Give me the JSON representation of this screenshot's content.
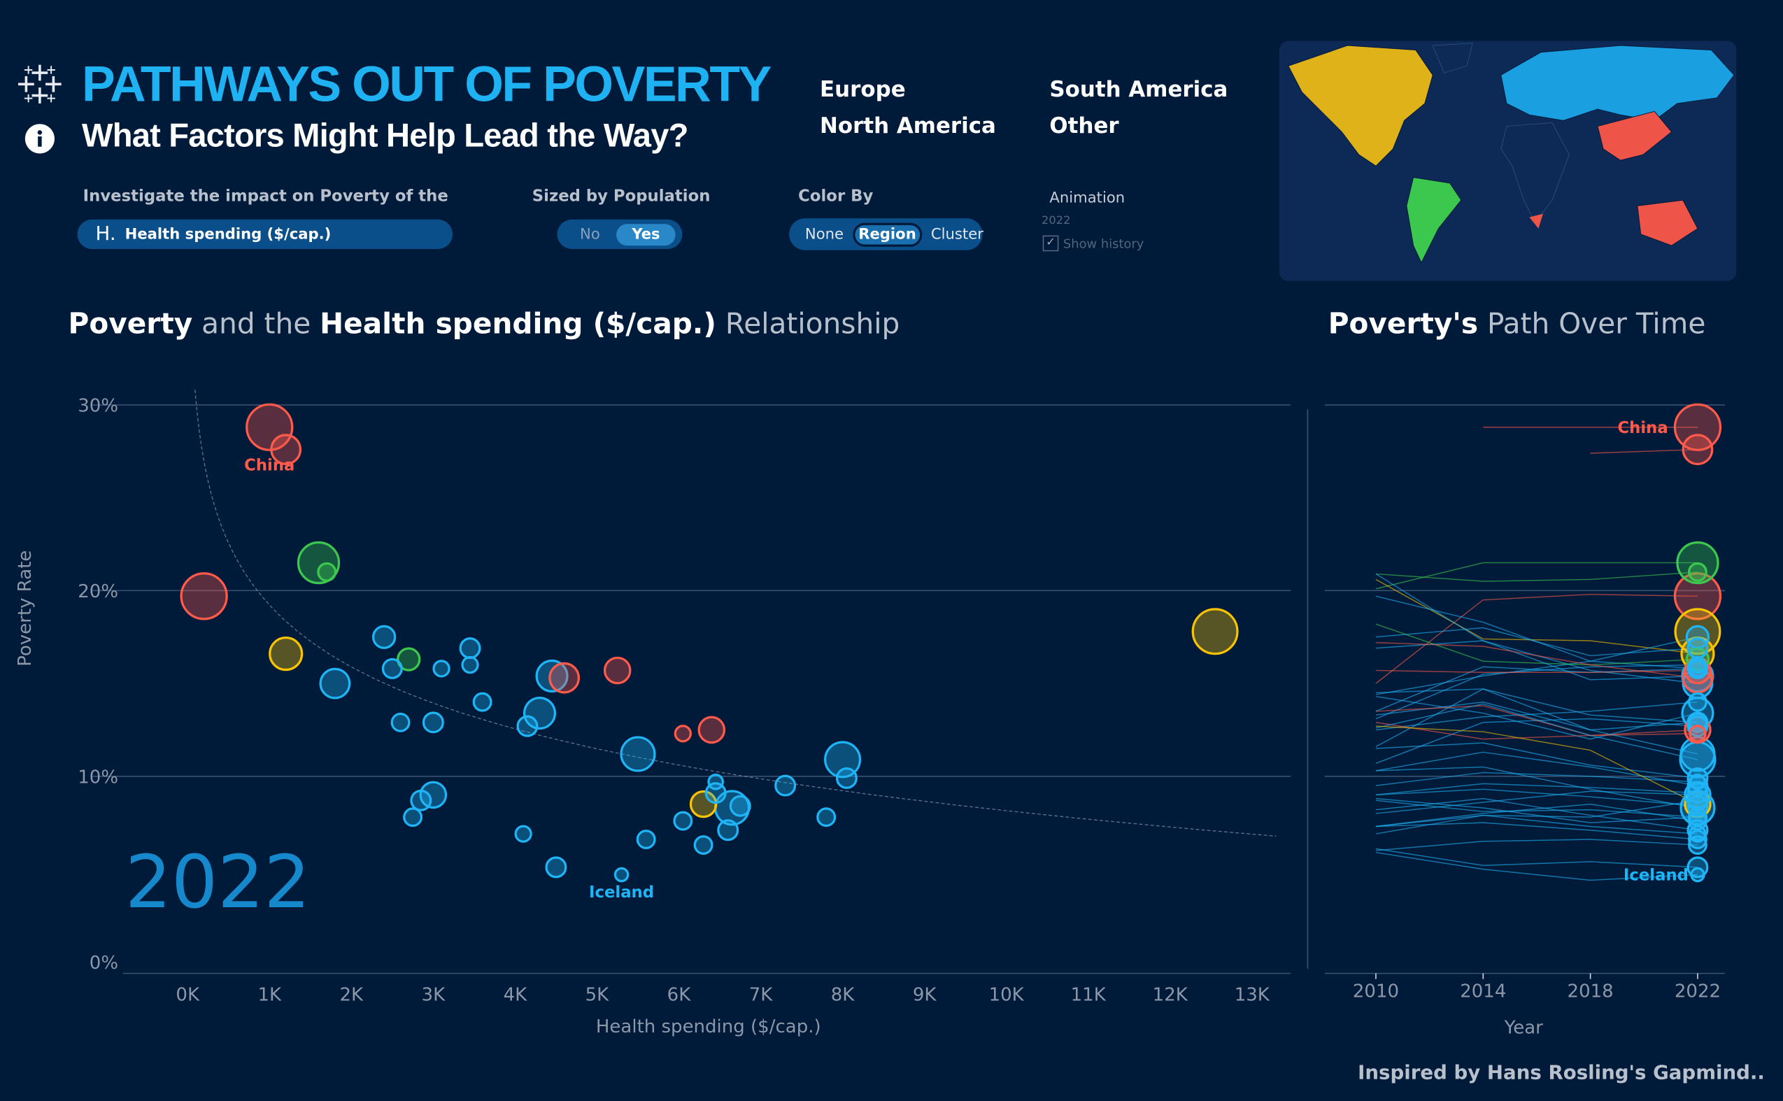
{
  "header": {
    "title": "PATHWAYS OUT OF POVERTY",
    "subtitle": "What Factors Might Help Lead the Way?",
    "logo_icon": "tableau-logo-icon",
    "info_icon": "info-icon"
  },
  "legend": [
    {
      "label": "Europe",
      "color": "#1fb4f5"
    },
    {
      "label": "South America",
      "color": "#3cc84e"
    },
    {
      "label": "North America",
      "color": "#f8c300"
    },
    {
      "label": "Other",
      "color": "#ff5a4a"
    }
  ],
  "controls": {
    "factor_label": "Investigate the impact on Poverty of the",
    "factor_prefix": "H.",
    "factor_value": "Health spending ($/cap.)",
    "size_label": "Sized by Population",
    "size_options": [
      "No",
      "Yes"
    ],
    "size_selected": "Yes",
    "color_label": "Color By",
    "color_options": [
      "None",
      "Region",
      "Cluster"
    ],
    "color_selected": "Region",
    "animation_label": "Animation",
    "animation_year": "2022",
    "show_history_label": "Show history",
    "show_history_checked": true
  },
  "scatter_title": {
    "b1": "Poverty",
    "t1": " and the ",
    "b2": "Health spending ($/cap.)",
    "t2": " Relationship"
  },
  "path_title": {
    "b1": "Poverty's",
    "t1": " Path Over Time"
  },
  "footer": "Inspired by Hans Rosling's Gapmind..",
  "chart_data": [
    {
      "type": "scatter",
      "xlabel": "Health spending ($/cap.)",
      "ylabel": "Poverty Rate",
      "xlim": [
        -0.5,
        13.5
      ],
      "ylim": [
        0,
        30
      ],
      "x_ticks": [
        "0K",
        "1K",
        "2K",
        "3K",
        "4K",
        "5K",
        "6K",
        "7K",
        "8K",
        "9K",
        "10K",
        "11K",
        "12K",
        "13K"
      ],
      "y_ticks": [
        "0%",
        "10%",
        "20%",
        "30%"
      ],
      "year_label": "2022",
      "trendline": "logarithmic",
      "grid": true,
      "annotations": [
        "China",
        "Iceland"
      ]
    },
    {
      "type": "line",
      "xlabel": "Year",
      "x_ticks": [
        "2010",
        "2014",
        "2018",
        "2022"
      ],
      "history_years": [
        2010,
        2014,
        2018,
        2022
      ],
      "ylim": [
        0,
        30
      ],
      "annotations": [
        "China",
        "Iceland"
      ]
    }
  ],
  "countries": [
    {
      "name": "China",
      "region": "Other",
      "health_k": 1.0,
      "poverty": 28.8,
      "pop_rel": 1.0,
      "history": [
        null,
        28.8,
        28.8,
        28.8
      ]
    },
    {
      "name": "",
      "region": "Other",
      "health_k": 1.2,
      "poverty": 27.6,
      "pop_rel": 0.3,
      "history": [
        null,
        null,
        27.4,
        27.6
      ]
    },
    {
      "name": "",
      "region": "Other",
      "health_k": 0.2,
      "poverty": 19.7,
      "pop_rel": 1.0,
      "history": [
        15,
        19.5,
        19.8,
        19.7
      ]
    },
    {
      "name": "",
      "region": "South America",
      "health_k": 1.6,
      "poverty": 21.5,
      "pop_rel": 0.75,
      "history": [
        20.1,
        21.5,
        21.5,
        21.5
      ]
    },
    {
      "name": "",
      "region": "South America",
      "health_k": 1.7,
      "poverty": 21.0,
      "pop_rel": 0.05,
      "history": [
        20.9,
        20.5,
        20.6,
        21.0
      ]
    },
    {
      "name": "",
      "region": "North America",
      "health_k": 1.2,
      "poverty": 16.6,
      "pop_rel": 0.4,
      "history": [
        20.6,
        17.4,
        17.3,
        16.6
      ]
    },
    {
      "name": "",
      "region": "Europe",
      "health_k": 1.8,
      "poverty": 15.0,
      "pop_rel": 0.3,
      "history": [
        20.9,
        17.3,
        15.7,
        15.0
      ]
    },
    {
      "name": "",
      "region": "Europe",
      "health_k": 2.4,
      "poverty": 17.5,
      "pop_rel": 0.12,
      "history": [
        19.7,
        18.3,
        16.2,
        17.5
      ]
    },
    {
      "name": "",
      "region": "Europe",
      "health_k": 2.5,
      "poverty": 15.8,
      "pop_rel": 0.07,
      "history": [
        14.4,
        15.4,
        16.2,
        15.8
      ]
    },
    {
      "name": "",
      "region": "South America",
      "health_k": 2.7,
      "poverty": 16.3,
      "pop_rel": 0.12,
      "history": [
        18.2,
        16.2,
        16.0,
        16.3
      ]
    },
    {
      "name": "",
      "region": "Europe",
      "health_k": 3.1,
      "poverty": 15.8,
      "pop_rel": 0.03,
      "history": [
        13.5,
        15.9,
        15.6,
        15.8
      ]
    },
    {
      "name": "",
      "region": "Europe",
      "health_k": 3.45,
      "poverty": 16.9,
      "pop_rel": 0.08,
      "history": [
        17.5,
        18.0,
        16.5,
        16.9
      ]
    },
    {
      "name": "",
      "region": "Europe",
      "health_k": 3.45,
      "poverty": 16.0,
      "pop_rel": 0.03,
      "history": [
        13.1,
        15.5,
        15.9,
        16.0
      ]
    },
    {
      "name": "",
      "region": "Europe",
      "health_k": 3.6,
      "poverty": 14.0,
      "pop_rel": 0.05,
      "history": [
        12.5,
        13.2,
        13.5,
        14.0
      ]
    },
    {
      "name": "",
      "region": "Europe",
      "health_k": 2.6,
      "poverty": 12.9,
      "pop_rel": 0.05,
      "history": [
        11.6,
        14.7,
        13.3,
        12.9
      ]
    },
    {
      "name": "",
      "region": "Europe",
      "health_k": 3.0,
      "poverty": 12.9,
      "pop_rel": 0.08,
      "history": [
        13.3,
        14.0,
        12.5,
        12.9
      ]
    },
    {
      "name": "",
      "region": "Europe",
      "health_k": 4.3,
      "poverty": 13.4,
      "pop_rel": 0.35,
      "history": [
        14.3,
        13.4,
        12.0,
        13.4
      ]
    },
    {
      "name": "",
      "region": "Europe",
      "health_k": 4.15,
      "poverty": 12.7,
      "pop_rel": 0.08,
      "history": [
        10.7,
        12.9,
        13.1,
        12.7
      ]
    },
    {
      "name": "",
      "region": "Europe",
      "health_k": 4.45,
      "poverty": 15.4,
      "pop_rel": 0.35,
      "history": [
        16.9,
        17.3,
        15.2,
        15.4
      ]
    },
    {
      "name": "",
      "region": "Other",
      "health_k": 4.6,
      "poverty": 15.3,
      "pop_rel": 0.3,
      "history": [
        17.2,
        17.0,
        16.0,
        15.3
      ]
    },
    {
      "name": "",
      "region": "Other",
      "health_k": 5.25,
      "poverty": 15.7,
      "pop_rel": 0.2,
      "history": [
        15.7,
        15.6,
        15.6,
        15.7
      ]
    },
    {
      "name": "",
      "region": "Other",
      "health_k": 6.05,
      "poverty": 12.3,
      "pop_rel": 0.03,
      "history": [
        12.9,
        12.0,
        12.2,
        12.3
      ]
    },
    {
      "name": "",
      "region": "Other",
      "health_k": 6.4,
      "poverty": 12.5,
      "pop_rel": 0.2,
      "history": [
        13.5,
        13.8,
        12.2,
        12.5
      ]
    },
    {
      "name": "",
      "region": "Europe",
      "health_k": 5.5,
      "poverty": 11.2,
      "pop_rel": 0.45,
      "history": [
        14.5,
        14.7,
        12.5,
        11.2
      ]
    },
    {
      "name": "",
      "region": "Europe",
      "health_k": 8.0,
      "poverty": 10.9,
      "pop_rel": 0.5,
      "history": [
        12.6,
        13.9,
        12.2,
        10.9
      ]
    },
    {
      "name": "",
      "region": "Europe",
      "health_k": 8.05,
      "poverty": 9.9,
      "pop_rel": 0.08,
      "history": [
        11.5,
        11.8,
        10.6,
        9.9
      ]
    },
    {
      "name": "",
      "region": "Europe",
      "health_k": 7.3,
      "poverty": 9.5,
      "pop_rel": 0.08,
      "history": [
        10.3,
        11.3,
        10.5,
        9.5
      ]
    },
    {
      "name": "",
      "region": "Europe",
      "health_k": 6.45,
      "poverty": 9.7,
      "pop_rel": 0.02,
      "history": [
        9.5,
        10.2,
        10.0,
        9.7
      ]
    },
    {
      "name": "",
      "region": "Europe",
      "health_k": 6.45,
      "poverty": 9.1,
      "pop_rel": 0.08,
      "history": [
        9.0,
        9.6,
        9.4,
        9.1
      ]
    },
    {
      "name": "",
      "region": "North America",
      "health_k": 6.3,
      "poverty": 8.5,
      "pop_rel": 0.2,
      "history": [
        12.7,
        12.4,
        11.4,
        8.5
      ]
    },
    {
      "name": "",
      "region": "Europe",
      "health_k": 6.65,
      "poverty": 8.3,
      "pop_rel": 0.45,
      "history": [
        10.3,
        10.5,
        9.3,
        8.3
      ]
    },
    {
      "name": "",
      "region": "Europe",
      "health_k": 6.75,
      "poverty": 8.4,
      "pop_rel": 0.08,
      "history": [
        9.0,
        9.3,
        8.9,
        8.4
      ]
    },
    {
      "name": "",
      "region": "Europe",
      "health_k": 6.6,
      "poverty": 7.1,
      "pop_rel": 0.08,
      "history": [
        8.2,
        8.8,
        7.9,
        7.1
      ]
    },
    {
      "name": "",
      "region": "Europe",
      "health_k": 6.05,
      "poverty": 7.6,
      "pop_rel": 0.05,
      "history": [
        7.3,
        8.0,
        8.5,
        7.6
      ]
    },
    {
      "name": "",
      "region": "Europe",
      "health_k": 6.3,
      "poverty": 6.3,
      "pop_rel": 0.05,
      "history": [
        6.0,
        6.5,
        6.6,
        6.3
      ]
    },
    {
      "name": "",
      "region": "Europe",
      "health_k": 5.6,
      "poverty": 6.6,
      "pop_rel": 0.05,
      "history": [
        7.3,
        7.5,
        7.1,
        6.6
      ]
    },
    {
      "name": "",
      "region": "Europe",
      "health_k": 7.8,
      "poverty": 7.8,
      "pop_rel": 0.05,
      "history": [
        8.7,
        8.1,
        8.2,
        7.8
      ]
    },
    {
      "name": "",
      "region": "Europe",
      "health_k": 3.0,
      "poverty": 9.0,
      "pop_rel": 0.2,
      "history": [
        8.0,
        8.6,
        9.2,
        9.0
      ]
    },
    {
      "name": "",
      "region": "Europe",
      "health_k": 2.85,
      "poverty": 8.7,
      "pop_rel": 0.08,
      "history": [
        7.3,
        7.9,
        7.8,
        8.7
      ]
    },
    {
      "name": "",
      "region": "Europe",
      "health_k": 2.75,
      "poverty": 7.8,
      "pop_rel": 0.05,
      "history": [
        8.8,
        8.3,
        7.5,
        7.8
      ]
    },
    {
      "name": "",
      "region": "Europe",
      "health_k": 4.1,
      "poverty": 6.9,
      "pop_rel": 0.03,
      "history": [
        6.9,
        7.9,
        7.3,
        6.9
      ]
    },
    {
      "name": "",
      "region": "Europe",
      "health_k": 4.5,
      "poverty": 5.1,
      "pop_rel": 0.08,
      "history": [
        6.1,
        5.2,
        5.4,
        5.1
      ]
    },
    {
      "name": "Iceland",
      "region": "Europe",
      "health_k": 5.3,
      "poverty": 4.7,
      "pop_rel": 0.01,
      "history": [
        5.9,
        5.0,
        4.4,
        4.7
      ]
    },
    {
      "name": "",
      "region": "North America",
      "health_k": 12.55,
      "poverty": 17.8,
      "pop_rel": 0.95,
      "history": [
        null,
        null,
        null,
        17.8
      ]
    }
  ]
}
